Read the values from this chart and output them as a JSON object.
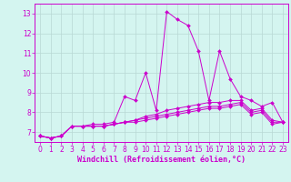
{
  "title": "",
  "xlabel": "Windchill (Refroidissement éolien,°C)",
  "ylabel": "",
  "background_color": "#d4f5f0",
  "grid_color": "#b8d8d4",
  "line_color": "#cc00cc",
  "xlim": [
    -0.5,
    23.5
  ],
  "ylim": [
    6.5,
    13.5
  ],
  "yticks": [
    7,
    8,
    9,
    10,
    11,
    12,
    13
  ],
  "xticks": [
    0,
    1,
    2,
    3,
    4,
    5,
    6,
    7,
    8,
    9,
    10,
    11,
    12,
    13,
    14,
    15,
    16,
    17,
    18,
    19,
    20,
    21,
    22,
    23
  ],
  "series": [
    [
      6.8,
      6.7,
      6.8,
      7.3,
      7.3,
      7.4,
      7.4,
      7.5,
      8.8,
      8.6,
      10.0,
      8.1,
      13.1,
      12.7,
      12.4,
      11.1,
      8.6,
      11.1,
      9.7,
      8.8,
      8.6,
      8.3,
      8.5,
      7.5
    ],
    [
      6.8,
      6.7,
      6.8,
      7.3,
      7.3,
      7.3,
      7.3,
      7.4,
      7.5,
      7.6,
      7.8,
      7.9,
      8.1,
      8.2,
      8.3,
      8.4,
      8.5,
      8.5,
      8.6,
      8.6,
      8.1,
      8.2,
      7.6,
      7.5
    ],
    [
      6.8,
      6.7,
      6.8,
      7.3,
      7.3,
      7.3,
      7.3,
      7.4,
      7.5,
      7.6,
      7.7,
      7.8,
      7.9,
      8.0,
      8.1,
      8.2,
      8.3,
      8.3,
      8.4,
      8.5,
      8.0,
      8.1,
      7.5,
      7.5
    ],
    [
      6.8,
      6.7,
      6.8,
      7.3,
      7.3,
      7.3,
      7.3,
      7.4,
      7.5,
      7.5,
      7.6,
      7.7,
      7.8,
      7.9,
      8.0,
      8.1,
      8.2,
      8.2,
      8.3,
      8.4,
      7.9,
      8.0,
      7.4,
      7.5
    ]
  ],
  "tick_fontsize": 5.5,
  "xlabel_fontsize": 6.0
}
